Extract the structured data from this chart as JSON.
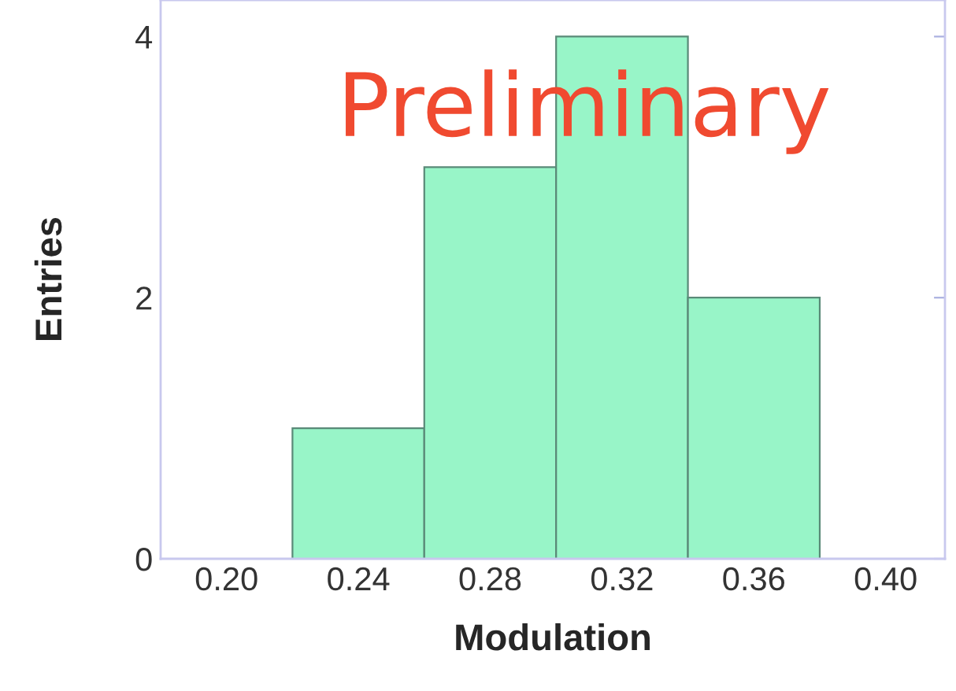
{
  "chart_data": {
    "type": "histogram",
    "bins": [
      0.22,
      0.26,
      0.3,
      0.34,
      0.38
    ],
    "values": [
      1,
      3,
      4,
      2
    ],
    "color": "#98f5c8",
    "xlabel": "Modulation",
    "ylabel": "Entries",
    "xlim": [
      0.18,
      0.418
    ],
    "xticks": [
      {
        "value": 0.2,
        "label": "0.20"
      },
      0.24,
      0.28,
      0.32,
      0.36,
      {
        "value": 0.4,
        "label": "0.40"
      }
    ],
    "ylim": [
      0,
      4.28
    ],
    "yticks": [
      0,
      2,
      4
    ],
    "annotations": [
      "Preliminary"
    ],
    "grid": false
  }
}
